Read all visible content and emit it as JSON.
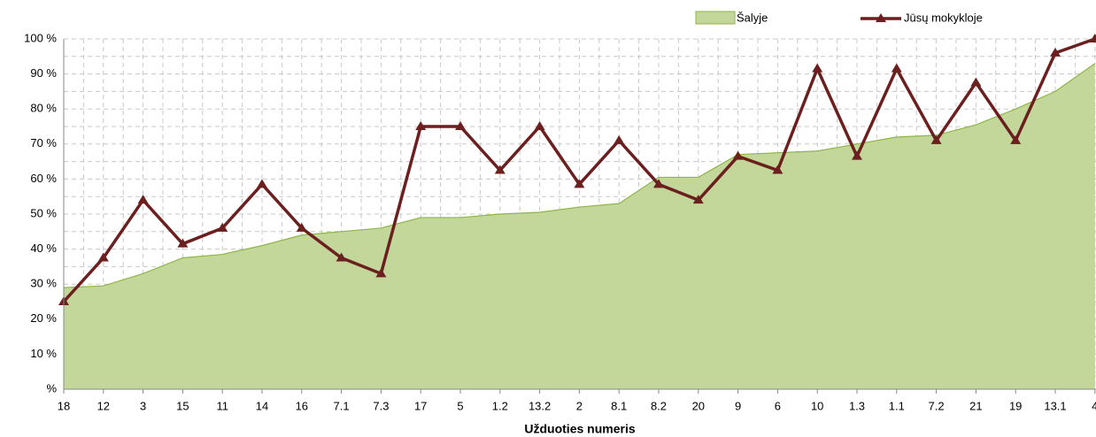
{
  "chart_data": {
    "type": "line",
    "x_label": "Užduoties numeris",
    "categories": [
      "18",
      "12",
      "3",
      "15",
      "11",
      "14",
      "16",
      "7.1",
      "7.3",
      "17",
      "5",
      "1.2",
      "13.2",
      "2",
      "8.1",
      "8.2",
      "20",
      "9",
      "6",
      "10",
      "1.3",
      "1.1",
      "7.2",
      "21",
      "19",
      "13.1",
      "4"
    ],
    "series": [
      {
        "name": "Šalyje",
        "kind": "area",
        "color": "#c4d79b",
        "edge_color": "#8fb54a",
        "values": [
          29,
          29.5,
          33,
          37.5,
          38.5,
          41,
          44,
          45,
          46,
          49,
          49,
          50,
          50.5,
          52,
          53,
          60.5,
          60.5,
          67,
          67.5,
          68,
          70,
          72,
          72.5,
          75.5,
          80,
          85,
          93
        ]
      },
      {
        "name": "Jūsų mokykloje",
        "kind": "line",
        "color": "#6b1f1f",
        "values": [
          25,
          37.5,
          54,
          41.5,
          46,
          58.5,
          46,
          37.5,
          33,
          75,
          75,
          62.5,
          75,
          58.5,
          71,
          58.5,
          54,
          66.5,
          62.5,
          91.5,
          66.5,
          91.5,
          71,
          87.5,
          71,
          96,
          100
        ]
      }
    ],
    "ylim": [
      0,
      100
    ],
    "yticks": [
      {
        "value": 0,
        "label": "%"
      },
      {
        "value": 10,
        "label": "10 %"
      },
      {
        "value": 20,
        "label": "20 %"
      },
      {
        "value": 30,
        "label": "30 %"
      },
      {
        "value": 40,
        "label": "40 %"
      },
      {
        "value": 50,
        "label": "50 %"
      },
      {
        "value": 60,
        "label": "60 %"
      },
      {
        "value": 70,
        "label": "70 %"
      },
      {
        "value": 80,
        "label": "80 %"
      },
      {
        "value": 90,
        "label": "90 %"
      },
      {
        "value": 100,
        "label": "100 %"
      }
    ],
    "grid": true,
    "legend": "top-right"
  }
}
